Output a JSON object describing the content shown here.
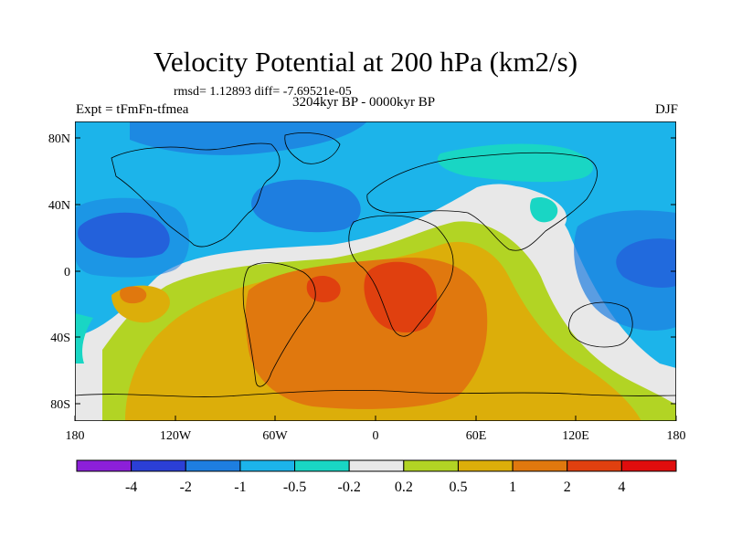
{
  "title": "Velocity Potential at 200 hPa (km2/s)",
  "stats": "rmsd= 1.12893 diff= -7.69521e-05",
  "experiment": "Expt = tFmFn-tfmea",
  "period": "3204kyr BP - 0000kyr BP",
  "season": "DJF",
  "y_axis_labels": [
    "80N",
    "40N",
    "0",
    "40S",
    "80S"
  ],
  "x_axis_labels": [
    "180",
    "120W",
    "60W",
    "0",
    "60E",
    "120E",
    "180"
  ],
  "colorbar": {
    "labels": [
      "-4",
      "-2",
      "-1",
      "-0.5",
      "-0.2",
      "0.2",
      "0.5",
      "1",
      "2",
      "4"
    ],
    "colors": [
      "#8c1fd9",
      "#2b3fd6",
      "#1e7ee0",
      "#1cb4ea",
      "#19d6c4",
      "#e8e8e8",
      "#b2d424",
      "#dcae0a",
      "#e0780e",
      "#e0400f",
      "#e00d0d"
    ]
  },
  "palette": {
    "ocean_base": "#1cb4ea",
    "deep_blue": "#2b3fd6",
    "mid_blue": "#1e7ee0",
    "teal": "#19d6c4",
    "neutral": "#e8e8e8",
    "lime": "#b2d424",
    "gold": "#dcae0a",
    "orange": "#e0780e",
    "red_orange": "#e0400f"
  }
}
